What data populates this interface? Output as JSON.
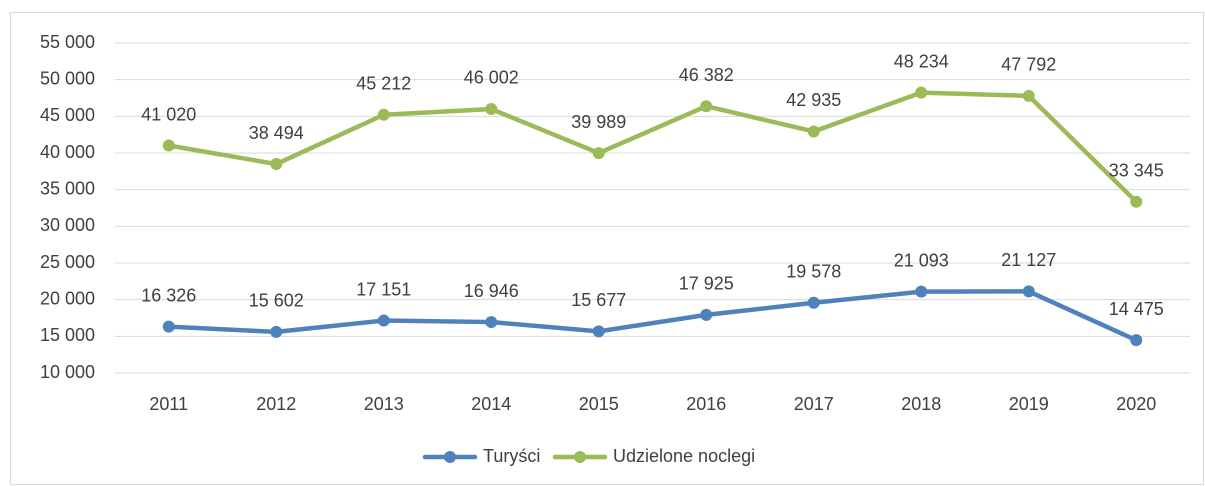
{
  "chart_data": {
    "type": "line",
    "categories": [
      "2011",
      "2012",
      "2013",
      "2014",
      "2015",
      "2016",
      "2017",
      "2018",
      "2019",
      "2020"
    ],
    "series": [
      {
        "name": "Turyści",
        "color": "#4f81bd",
        "values": [
          16326,
          15602,
          17151,
          16946,
          15677,
          17925,
          19578,
          21093,
          21127,
          14475
        ],
        "value_labels": [
          "16 326",
          "15 602",
          "17 151",
          "16 946",
          "15 677",
          "17 925",
          "19 578",
          "21 093",
          "21 127",
          "14 475"
        ]
      },
      {
        "name": "Udzielone noclegi",
        "color": "#9bbb59",
        "values": [
          41020,
          38494,
          45212,
          46002,
          39989,
          46382,
          42935,
          48234,
          47792,
          33345
        ],
        "value_labels": [
          "41 020",
          "38 494",
          "45 212",
          "46 002",
          "39 989",
          "46 382",
          "42 935",
          "48 234",
          "47 792",
          "33 345"
        ]
      }
    ],
    "ylim": [
      10000,
      55000
    ],
    "yticks": [
      {
        "value": 10000,
        "label": "10 000"
      },
      {
        "value": 15000,
        "label": "15 000"
      },
      {
        "value": 20000,
        "label": "20 000"
      },
      {
        "value": 25000,
        "label": "25 000"
      },
      {
        "value": 30000,
        "label": "30 000"
      },
      {
        "value": 35000,
        "label": "35 000"
      },
      {
        "value": 40000,
        "label": "40 000"
      },
      {
        "value": 45000,
        "label": "45 000"
      },
      {
        "value": 50000,
        "label": "50 000"
      },
      {
        "value": 55000,
        "label": "55 000"
      }
    ],
    "grid": true,
    "legend": "bottom"
  }
}
